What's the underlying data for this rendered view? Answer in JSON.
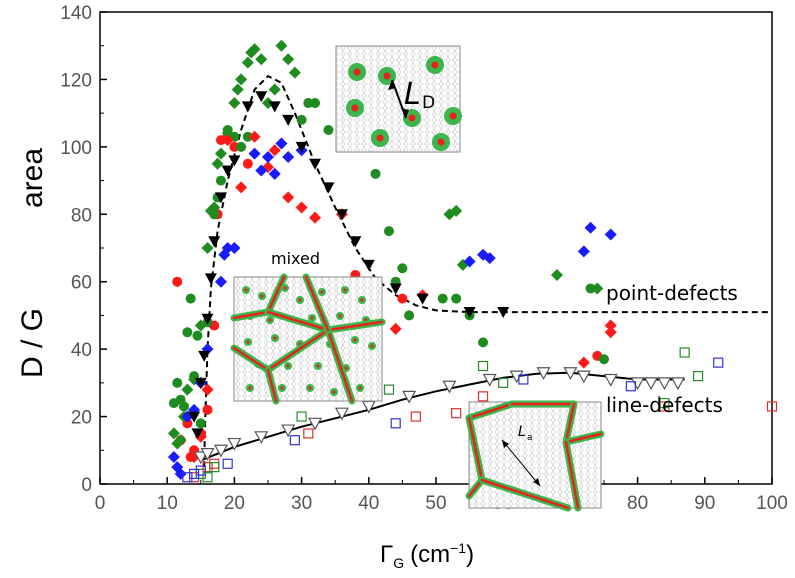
{
  "chart_data": {
    "type": "scatter",
    "title": "",
    "xlabel": {
      "symbol": "Γ",
      "subscript": "G",
      "unit": "(cm",
      "unit_exp": "−1",
      "unit_close": ")"
    },
    "ylabel": {
      "left": "D / G",
      "right": "area"
    },
    "xlim": [
      0,
      100
    ],
    "ylim": [
      0,
      140
    ],
    "x_ticks": [
      0,
      10,
      20,
      30,
      40,
      50,
      60,
      70,
      80,
      90,
      100
    ],
    "y_ticks": [
      0,
      20,
      40,
      60,
      80,
      100,
      120,
      140
    ],
    "annotations": {
      "point_defects": "point-defects",
      "line_defects": "line-defects",
      "mixed": "mixed",
      "ld_label": "L",
      "ld_sub": "D",
      "la_label": "L",
      "la_sub": "a"
    },
    "colors": {
      "red": "#ff1a1a",
      "green": "#1e8c1e",
      "blue": "#1a1aff",
      "black": "#000000",
      "inset_green": "#3cb54a",
      "inset_red": "#e8231f",
      "open_red": "#e03030",
      "open_green": "#2a8a2a",
      "open_blue": "#3030e0"
    },
    "series": [
      {
        "name": "red-circles",
        "marker": "circle",
        "color": "red",
        "points": [
          [
            11.5,
            60
          ],
          [
            12,
            13
          ],
          [
            13,
            18
          ],
          [
            13.5,
            8
          ],
          [
            14,
            10
          ],
          [
            15,
            15
          ],
          [
            16,
            22
          ],
          [
            17,
            47
          ],
          [
            17.5,
            80
          ],
          [
            18,
            102
          ],
          [
            19,
            103
          ],
          [
            20,
            100
          ],
          [
            22,
            95
          ],
          [
            38,
            62
          ],
          [
            45,
            55
          ],
          [
            74,
            38
          ]
        ]
      },
      {
        "name": "green-circles",
        "marker": "circle",
        "color": "green",
        "points": [
          [
            11,
            24
          ],
          [
            11.5,
            30
          ],
          [
            12,
            25
          ],
          [
            12.5,
            23
          ],
          [
            13,
            45
          ],
          [
            13.5,
            55
          ],
          [
            14,
            32
          ],
          [
            14.5,
            44
          ],
          [
            15,
            18
          ],
          [
            16,
            48
          ],
          [
            17,
            80
          ],
          [
            17.5,
            85
          ],
          [
            18,
            90
          ],
          [
            19,
            105
          ],
          [
            20,
            103
          ],
          [
            21,
            100
          ],
          [
            22,
            103
          ],
          [
            30,
            108
          ],
          [
            31,
            113
          ],
          [
            32,
            113
          ],
          [
            34,
            105
          ],
          [
            36,
            104
          ],
          [
            38,
            101
          ],
          [
            41,
            92
          ],
          [
            43,
            75
          ],
          [
            44,
            60
          ],
          [
            45,
            64
          ],
          [
            46,
            50
          ],
          [
            51,
            55
          ],
          [
            53,
            55
          ],
          [
            55,
            50
          ],
          [
            57,
            42
          ],
          [
            73,
            58
          ],
          [
            75,
            37
          ]
        ]
      },
      {
        "name": "green-diamonds",
        "marker": "diamond",
        "color": "green",
        "points": [
          [
            11,
            15
          ],
          [
            11.5,
            12
          ],
          [
            12,
            13
          ],
          [
            12.5,
            20
          ],
          [
            13,
            28
          ],
          [
            14,
            31
          ],
          [
            15,
            47
          ],
          [
            16,
            70
          ],
          [
            16.5,
            81
          ],
          [
            17,
            82
          ],
          [
            17.5,
            95
          ],
          [
            18,
            98
          ],
          [
            19,
            104
          ],
          [
            20,
            113
          ],
          [
            20.5,
            117
          ],
          [
            21,
            120
          ],
          [
            22,
            125
          ],
          [
            22.5,
            128
          ],
          [
            23,
            129
          ],
          [
            24,
            126
          ],
          [
            25,
            113
          ],
          [
            26,
            117
          ],
          [
            27,
            130
          ],
          [
            28,
            126
          ],
          [
            29,
            122
          ],
          [
            52,
            80
          ],
          [
            53,
            81
          ],
          [
            54,
            65
          ],
          [
            68,
            62
          ],
          [
            74,
            58
          ]
        ]
      },
      {
        "name": "red-diamonds",
        "marker": "diamond",
        "color": "red",
        "points": [
          [
            13,
            20
          ],
          [
            14,
            8
          ],
          [
            15,
            14
          ],
          [
            16,
            28
          ],
          [
            19,
            102
          ],
          [
            21,
            88
          ],
          [
            23,
            103
          ],
          [
            25,
            94
          ],
          [
            26,
            99
          ],
          [
            28,
            85
          ],
          [
            30,
            82
          ],
          [
            32,
            79
          ],
          [
            36,
            80
          ],
          [
            44,
            46
          ],
          [
            48,
            56
          ],
          [
            76,
            47
          ],
          [
            76,
            45
          ],
          [
            72,
            36
          ]
        ]
      },
      {
        "name": "blue-diamonds",
        "marker": "diamond",
        "color": "blue",
        "points": [
          [
            11,
            8
          ],
          [
            11.5,
            5
          ],
          [
            12,
            3
          ],
          [
            13,
            20
          ],
          [
            14,
            22
          ],
          [
            15,
            30
          ],
          [
            16,
            40
          ],
          [
            18,
            60
          ],
          [
            18.5,
            68
          ],
          [
            19,
            70
          ],
          [
            20,
            70
          ],
          [
            23,
            98
          ],
          [
            24,
            93
          ],
          [
            25,
            97
          ],
          [
            26,
            92
          ],
          [
            27,
            101
          ],
          [
            28,
            97
          ],
          [
            30,
            99
          ],
          [
            55,
            66
          ],
          [
            57,
            68
          ],
          [
            58,
            67
          ],
          [
            72,
            69
          ],
          [
            73,
            76
          ],
          [
            76,
            74
          ]
        ]
      },
      {
        "name": "black-down-triangles",
        "marker": "triangle-down",
        "color": "black",
        "points": [
          [
            14,
            20
          ],
          [
            14.5,
            15
          ],
          [
            15,
            30
          ],
          [
            15.5,
            38
          ],
          [
            16,
            49
          ],
          [
            16.5,
            61
          ],
          [
            17,
            72
          ],
          [
            18,
            85
          ],
          [
            19,
            93
          ],
          [
            20,
            96
          ],
          [
            22,
            112
          ],
          [
            24,
            115
          ],
          [
            26,
            112
          ],
          [
            28,
            108
          ],
          [
            30,
            100
          ],
          [
            32,
            95
          ],
          [
            34,
            88
          ],
          [
            36,
            80
          ],
          [
            38,
            72
          ],
          [
            40,
            65
          ],
          [
            44,
            58
          ],
          [
            48,
            55
          ],
          [
            55,
            51
          ],
          [
            60,
            51
          ]
        ]
      },
      {
        "name": "open-triangles",
        "marker": "triangle-down-open",
        "color": "black",
        "points": [
          [
            15,
            8
          ],
          [
            16,
            9
          ],
          [
            18,
            10
          ],
          [
            20,
            12
          ],
          [
            24,
            14
          ],
          [
            28,
            16
          ],
          [
            32,
            18
          ],
          [
            36,
            21
          ],
          [
            40,
            23
          ],
          [
            46,
            26
          ],
          [
            52,
            29
          ],
          [
            58,
            31
          ],
          [
            62,
            32
          ],
          [
            66,
            33
          ],
          [
            70,
            33
          ],
          [
            72,
            32
          ],
          [
            76,
            31
          ],
          [
            80,
            30
          ],
          [
            82,
            30
          ],
          [
            84,
            30
          ],
          [
            86,
            30
          ]
        ]
      },
      {
        "name": "open-squares-red",
        "marker": "square-open",
        "color": "open_red",
        "points": [
          [
            14,
            2
          ],
          [
            16,
            5
          ],
          [
            17,
            6
          ],
          [
            31,
            15
          ],
          [
            47,
            20
          ],
          [
            53,
            21
          ],
          [
            100,
            23
          ],
          [
            57,
            26
          ],
          [
            84,
            23
          ]
        ]
      },
      {
        "name": "open-squares-green",
        "marker": "square-open",
        "color": "open_green",
        "points": [
          [
            15,
            3
          ],
          [
            16,
            2
          ],
          [
            17,
            5
          ],
          [
            30,
            20
          ],
          [
            43,
            28
          ],
          [
            60,
            30
          ],
          [
            57,
            35
          ],
          [
            87,
            39
          ],
          [
            89,
            32
          ],
          [
            84,
            24
          ]
        ]
      },
      {
        "name": "open-squares-blue",
        "marker": "square-open",
        "color": "open_blue",
        "points": [
          [
            13,
            2
          ],
          [
            14,
            3
          ],
          [
            15,
            4
          ],
          [
            19,
            6
          ],
          [
            29,
            13
          ],
          [
            44,
            18
          ],
          [
            63,
            31
          ],
          [
            79,
            29
          ],
          [
            92,
            36
          ]
        ]
      }
    ],
    "fit_curves": [
      {
        "name": "point-defects-fit",
        "style": "dashed",
        "points": [
          [
            15.5,
            5
          ],
          [
            15.6,
            15
          ],
          [
            16,
            40
          ],
          [
            16.5,
            58
          ],
          [
            17.5,
            75
          ],
          [
            19,
            90
          ],
          [
            21,
            105
          ],
          [
            23,
            117
          ],
          [
            25,
            121
          ],
          [
            27,
            119
          ],
          [
            29,
            110
          ],
          [
            32,
            95
          ],
          [
            35,
            82
          ],
          [
            38,
            70
          ],
          [
            41,
            61
          ],
          [
            44,
            56
          ],
          [
            47,
            53
          ],
          [
            50,
            51.5
          ],
          [
            55,
            51
          ],
          [
            70,
            51
          ],
          [
            100,
            51
          ]
        ]
      },
      {
        "name": "line-defects-fit",
        "style": "solid",
        "points": [
          [
            15,
            7
          ],
          [
            20,
            11
          ],
          [
            25,
            14
          ],
          [
            30,
            17
          ],
          [
            35,
            19.5
          ],
          [
            40,
            22
          ],
          [
            45,
            25
          ],
          [
            50,
            27.5
          ],
          [
            55,
            29.5
          ],
          [
            60,
            31.5
          ],
          [
            65,
            32.7
          ],
          [
            70,
            33
          ],
          [
            75,
            32
          ],
          [
            80,
            31
          ],
          [
            85,
            31
          ],
          [
            87,
            31
          ]
        ]
      }
    ]
  }
}
